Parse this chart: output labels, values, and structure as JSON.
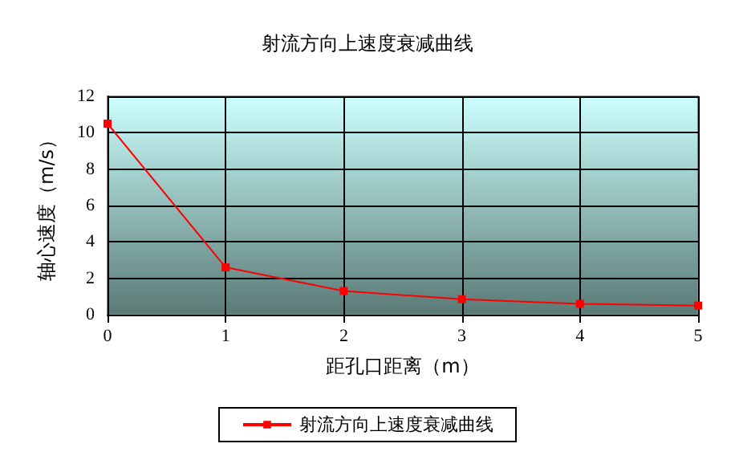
{
  "chart_data": {
    "type": "line",
    "title": "射流方向上速度衰减曲线",
    "xlabel": "距孔口距离（m）",
    "ylabel": "轴心速度（m/s）",
    "x": [
      0,
      1,
      2,
      3,
      4,
      5
    ],
    "series": [
      {
        "name": "射流方向上速度衰减曲线",
        "color": "#ff0000",
        "values": [
          10.5,
          2.6,
          1.3,
          0.85,
          0.6,
          0.5
        ]
      }
    ],
    "xlim": [
      0,
      5
    ],
    "xticks": [
      0,
      1,
      2,
      3,
      4,
      5
    ],
    "ylim": [
      0,
      12
    ],
    "yticks": [
      0,
      2,
      4,
      6,
      8,
      10,
      12
    ],
    "grid": true,
    "legend": "bottom",
    "marker": "square",
    "line_style": "solid"
  }
}
